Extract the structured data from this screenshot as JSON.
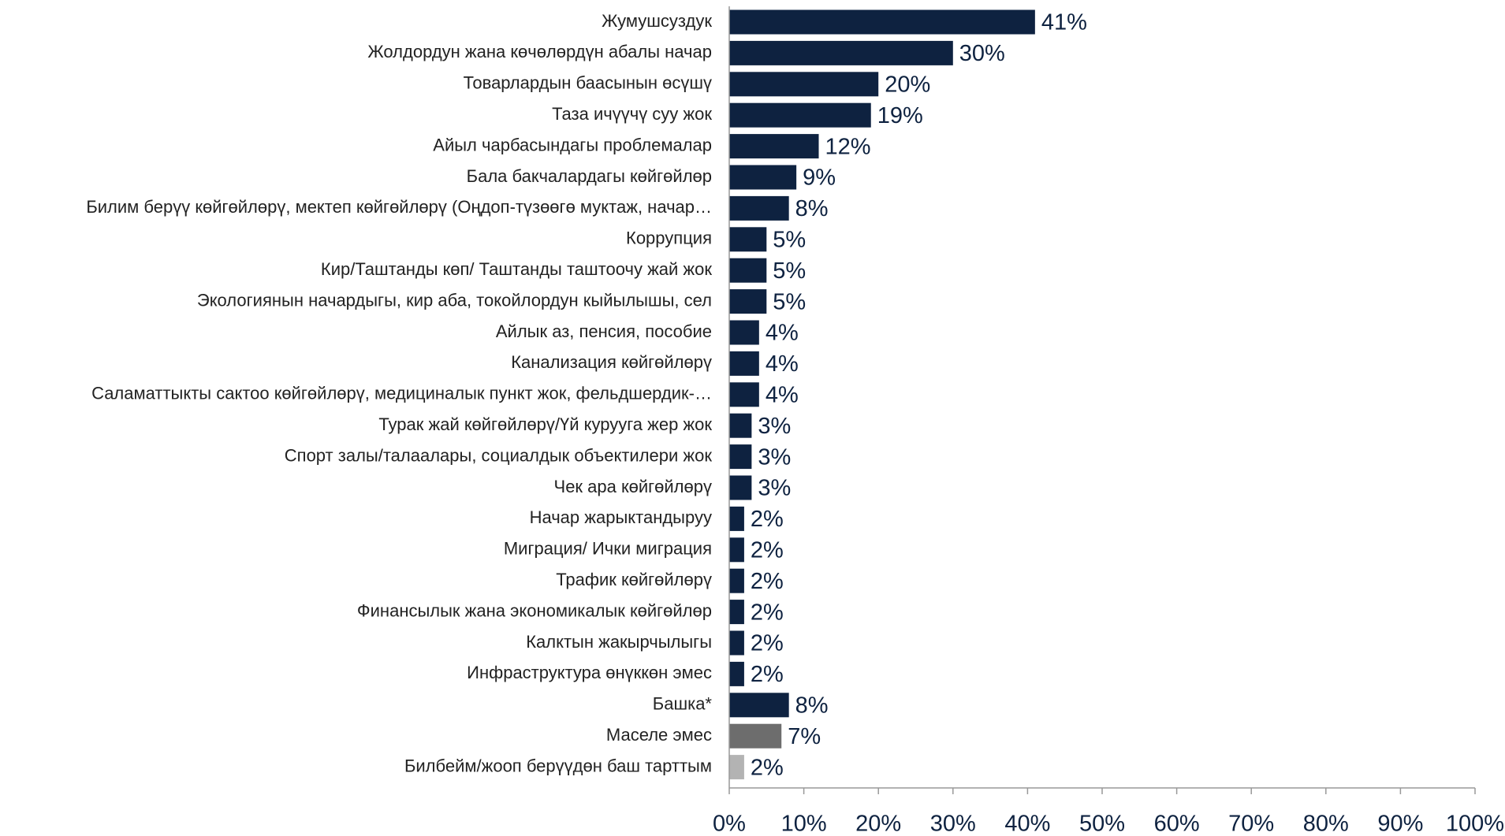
{
  "chart_data": {
    "type": "barh",
    "categories": [
      "Жумушсуздук",
      "Жолдордун жана көчөлөрдүн абалы начар",
      "Товарлардын баасынын өсүшү",
      "Таза ичүүчү суу жок",
      "Айыл чарбасындагы проблемалар",
      "Бала бакчалардагы көйгөйлөр",
      "Билим берүү көйгөйлөрү, мектеп көйгөйлөрү (Оңдоп-түзөөгө муктаж, начар…",
      "Коррупция",
      "Кир/Таштанды көп/ Таштанды таштоочу жай жок",
      "Экологиянын начардыгы, кир аба, токойлордун кыйылышы, сел",
      "Айлык аз, пенсия, пособие",
      "Канализация көйгөйлөрү",
      "Саламаттыкты сактоо көйгөйлөрү, медициналык пункт жок, фельдшердик-…",
      "Турак жай көйгөйлөрү/Үй курууга жер жок",
      "Спорт залы/талаалары, социалдык объектилери жок",
      "Чек ара көйгөйлөрү",
      "Начар жарыктандыруу",
      "Миграция/ Ички миграция",
      "Трафик көйгөйлөрү",
      "Финансылык жана экономикалык көйгөйлөр",
      "Калктын жакырчылыгы",
      "Инфраструктура өнүккөн эмес",
      "Башка*",
      "Маселе эмес",
      "Билбейм/жооп берүүдөн баш тарттым"
    ],
    "values": [
      41,
      30,
      20,
      19,
      12,
      9,
      8,
      5,
      5,
      5,
      4,
      4,
      4,
      3,
      3,
      3,
      2,
      2,
      2,
      2,
      2,
      2,
      8,
      7,
      2
    ],
    "value_labels": [
      "41%",
      "30%",
      "20%",
      "19%",
      "12%",
      "9%",
      "8%",
      "5%",
      "5%",
      "5%",
      "4%",
      "4%",
      "4%",
      "3%",
      "3%",
      "3%",
      "2%",
      "2%",
      "2%",
      "2%",
      "2%",
      "2%",
      "8%",
      "7%",
      "2%"
    ],
    "colors": [
      "#0e2240",
      "#0e2240",
      "#0e2240",
      "#0e2240",
      "#0e2240",
      "#0e2240",
      "#0e2240",
      "#0e2240",
      "#0e2240",
      "#0e2240",
      "#0e2240",
      "#0e2240",
      "#0e2240",
      "#0e2240",
      "#0e2240",
      "#0e2240",
      "#0e2240",
      "#0e2240",
      "#0e2240",
      "#0e2240",
      "#0e2240",
      "#0e2240",
      "#0e2240",
      "#6d6d6d",
      "#b3b3b3"
    ],
    "xlim": [
      0,
      100
    ],
    "xticks": [
      {
        "value": 0,
        "label": "0%"
      },
      {
        "value": 10,
        "label": "10%"
      },
      {
        "value": 20,
        "label": "20%"
      },
      {
        "value": 30,
        "label": "30%"
      },
      {
        "value": 40,
        "label": "40%"
      },
      {
        "value": 50,
        "label": "50%"
      },
      {
        "value": 60,
        "label": "60%"
      },
      {
        "value": 70,
        "label": "70%"
      },
      {
        "value": 80,
        "label": "80%"
      },
      {
        "value": 90,
        "label": "90%"
      },
      {
        "value": 100,
        "label": "100%"
      }
    ]
  }
}
